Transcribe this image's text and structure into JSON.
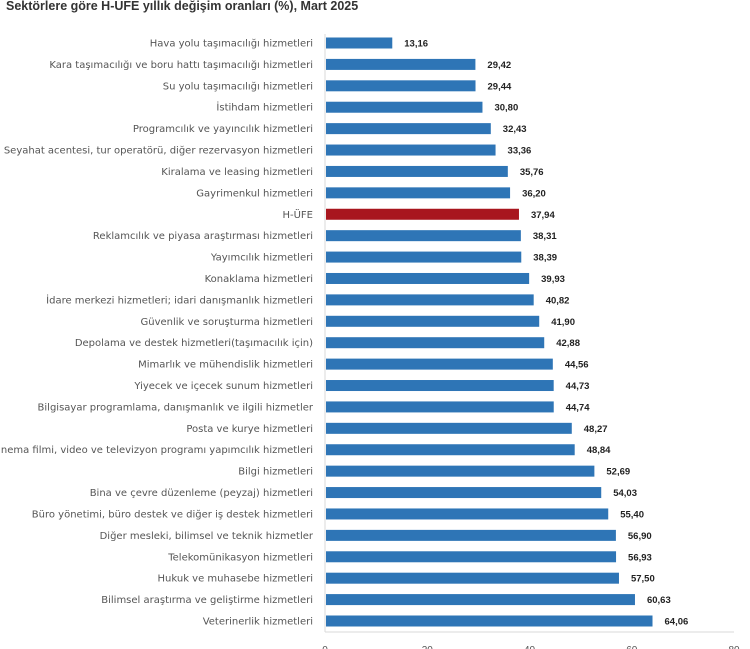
{
  "chart_data": {
    "type": "bar",
    "orientation": "horizontal",
    "title": "Sektörlere göre H-UFE yıllık değişim oranları (%), Mart 2025",
    "xlim": [
      0,
      80
    ],
    "xticks": [
      "0",
      "20",
      "40",
      "60",
      "80"
    ],
    "grid": false,
    "colors": {
      "default": "#2e75b6",
      "highlight": "#a8161e"
    },
    "highlight_category": "H-ÜFE",
    "categories": [
      "Hava yolu taşımacılığı hizmetleri",
      "Kara taşımacılığı ve boru hattı taşımacılığı hizmetleri",
      "Su yolu taşımacılığı hizmetleri",
      "İstihdam hizmetleri",
      "Programcılık ve yayıncılık hizmetleri",
      "Seyahat acentesi, tur operatörü, diğer rezervasyon hizmetleri",
      "Kiralama ve leasing hizmetleri",
      "Gayrimenkul hizmetleri",
      "H-ÜFE",
      "Reklamcılık ve piyasa araştırması hizmetleri",
      "Yayımcılık hizmetleri",
      "Konaklama hizmetleri",
      "İdare merkezi hizmetleri; idari danışmanlık hizmetleri",
      "Güvenlik ve soruşturma hizmetleri",
      "Depolama ve destek hizmetleri(taşımacılık için)",
      "Mimarlık ve mühendislik hizmetleri",
      "Yiyecek ve içecek sunum hizmetleri",
      "Bilgisayar programlama, danışmanlık ve ilgili hizmetler",
      "Posta ve kurye hizmetleri",
      "Sinema filmi, video ve televizyon programı yapımcılık hizmetleri",
      "Bilgi hizmetleri",
      "Bina ve çevre düzenleme (peyzaj) hizmetleri",
      "Büro yönetimi, büro destek ve diğer iş destek hizmetleri",
      "Diğer mesleki, bilimsel ve teknik hizmetler",
      "Telekomünikasyon hizmetleri",
      "Hukuk ve muhasebe hizmetleri",
      "Bilimsel araştırma ve geliştirme hizmetleri",
      "Veterinerlik hizmetleri"
    ],
    "values": [
      13.16,
      29.42,
      29.44,
      30.8,
      32.43,
      33.36,
      35.76,
      36.2,
      37.94,
      38.31,
      38.39,
      39.93,
      40.82,
      41.9,
      42.88,
      44.56,
      44.73,
      44.74,
      48.27,
      48.84,
      52.69,
      54.03,
      55.4,
      56.9,
      56.93,
      57.5,
      60.63,
      64.06
    ],
    "value_labels": [
      "13,16",
      "29,42",
      "29,44",
      "30,80",
      "32,43",
      "33,36",
      "35,76",
      "36,20",
      "37,94",
      "38,31",
      "38,39",
      "39,93",
      "40,82",
      "41,90",
      "42,88",
      "44,56",
      "44,73",
      "44,74",
      "48,27",
      "48,84",
      "52,69",
      "54,03",
      "55,40",
      "56,90",
      "56,93",
      "57,50",
      "60,63",
      "64,06"
    ]
  }
}
